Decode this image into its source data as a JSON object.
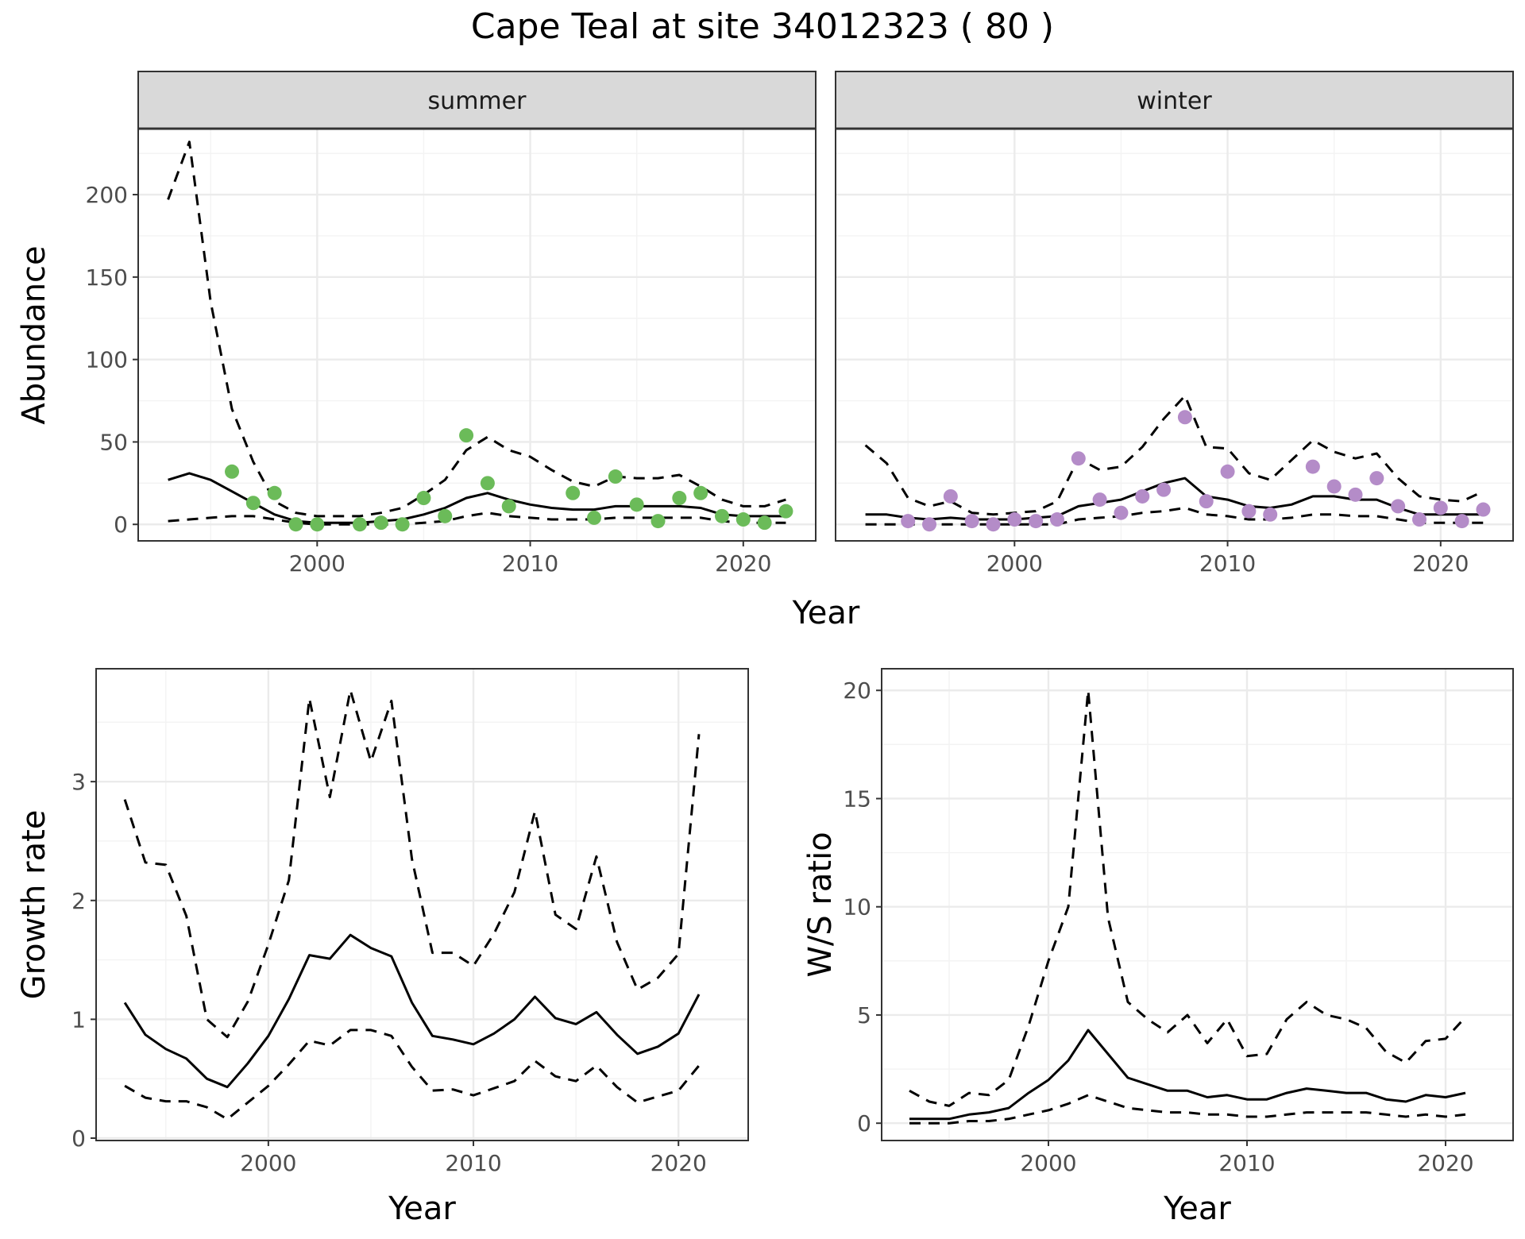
{
  "title": "Cape Teal at site 34012323 ( 80 )",
  "colors": {
    "summer_points": "#6bbb59",
    "winter_points": "#b48cc8"
  },
  "chart_data": [
    {
      "id": "abundance",
      "type": "line",
      "facets": [
        "summer",
        "winter"
      ],
      "xlabel": "Year",
      "ylabel": "Abundance",
      "xlim": [
        1991.6,
        2023.4
      ],
      "ylim": [
        -10,
        240
      ],
      "xticks": [
        2000,
        2010,
        2020
      ],
      "yticks": [
        0,
        50,
        100,
        150,
        200
      ],
      "panels": [
        {
          "facet": "summer",
          "x": [
            1993,
            1994,
            1995,
            1996,
            1997,
            1998,
            1999,
            2000,
            2001,
            2002,
            2003,
            2004,
            2005,
            2006,
            2007,
            2008,
            2009,
            2010,
            2011,
            2012,
            2013,
            2014,
            2015,
            2016,
            2017,
            2018,
            2019,
            2020,
            2021,
            2022
          ],
          "mean": [
            27,
            31,
            27,
            20,
            13,
            6,
            2,
            1,
            1,
            1,
            2,
            3,
            6,
            10,
            16,
            19,
            15,
            12,
            10,
            9,
            9,
            11,
            11,
            11,
            11,
            10,
            6,
            5,
            5,
            5
          ],
          "upper": [
            197,
            232,
            135,
            70,
            38,
            14,
            7,
            5,
            5,
            5,
            7,
            10,
            18,
            27,
            45,
            53,
            45,
            41,
            33,
            26,
            23,
            29,
            28,
            28,
            30,
            23,
            15,
            11,
            11,
            15
          ],
          "lower": [
            2,
            3,
            4,
            5,
            5,
            3,
            1,
            0,
            0,
            0,
            0,
            0,
            1,
            2,
            5,
            7,
            5,
            4,
            3,
            3,
            3,
            4,
            4,
            4,
            4,
            4,
            2,
            1,
            1,
            1
          ],
          "points": {
            "x": [
              1996,
              1997,
              1998,
              1999,
              2000,
              2002,
              2003,
              2004,
              2005,
              2006,
              2007,
              2008,
              2009,
              2012,
              2013,
              2014,
              2015,
              2016,
              2017,
              2018,
              2019,
              2020,
              2021,
              2022
            ],
            "y": [
              32,
              13,
              19,
              0,
              0,
              0,
              1,
              0,
              16,
              5,
              54,
              25,
              11,
              19,
              4,
              29,
              12,
              2,
              16,
              19,
              5,
              3,
              1,
              8
            ]
          }
        },
        {
          "facet": "winter",
          "x": [
            1993,
            1994,
            1995,
            1996,
            1997,
            1998,
            1999,
            2000,
            2001,
            2002,
            2003,
            2004,
            2005,
            2006,
            2007,
            2008,
            2009,
            2010,
            2011,
            2012,
            2013,
            2014,
            2015,
            2016,
            2017,
            2018,
            2019,
            2020,
            2021,
            2022
          ],
          "mean": [
            6,
            6,
            4,
            3,
            4,
            3,
            3,
            3,
            4,
            5,
            11,
            13,
            15,
            20,
            25,
            28,
            17,
            15,
            11,
            10,
            12,
            17,
            17,
            15,
            15,
            10,
            6,
            6,
            6,
            6
          ],
          "upper": [
            48,
            37,
            16,
            11,
            14,
            7,
            6,
            7,
            8,
            14,
            40,
            33,
            35,
            47,
            64,
            78,
            47,
            46,
            31,
            27,
            39,
            51,
            44,
            40,
            43,
            28,
            17,
            15,
            14,
            20
          ],
          "lower": [
            0,
            0,
            0,
            0,
            0,
            0,
            0,
            0,
            0,
            0,
            3,
            4,
            5,
            7,
            8,
            10,
            6,
            5,
            3,
            3,
            4,
            6,
            6,
            5,
            5,
            3,
            1,
            1,
            1,
            1
          ],
          "points": {
            "x": [
              1995,
              1996,
              1997,
              1998,
              1999,
              2000,
              2001,
              2002,
              2003,
              2004,
              2005,
              2006,
              2007,
              2008,
              2009,
              2010,
              2011,
              2012,
              2014,
              2015,
              2016,
              2017,
              2018,
              2019,
              2020,
              2021,
              2022
            ],
            "y": [
              2,
              0,
              17,
              2,
              0,
              3,
              2,
              3,
              40,
              15,
              7,
              17,
              21,
              65,
              14,
              32,
              8,
              6,
              35,
              23,
              18,
              28,
              11,
              3,
              10,
              2,
              9
            ]
          }
        }
      ]
    },
    {
      "id": "growth",
      "type": "line",
      "xlabel": "Year",
      "ylabel": "Growth rate",
      "xlim": [
        1991.6,
        2023.4
      ],
      "ylim": [
        -0.02,
        3.95
      ],
      "xticks": [
        2000,
        2010,
        2020
      ],
      "yticks": [
        0,
        1,
        2,
        3
      ],
      "x": [
        1993,
        1994,
        1995,
        1996,
        1997,
        1998,
        1999,
        2000,
        2001,
        2002,
        2003,
        2004,
        2005,
        2006,
        2007,
        2008,
        2009,
        2010,
        2011,
        2012,
        2013,
        2014,
        2015,
        2016,
        2017,
        2018,
        2019,
        2020,
        2021
      ],
      "mean": [
        1.14,
        0.87,
        0.75,
        0.67,
        0.5,
        0.43,
        0.63,
        0.86,
        1.17,
        1.54,
        1.51,
        1.71,
        1.6,
        1.53,
        1.14,
        0.86,
        0.83,
        0.79,
        0.88,
        1.0,
        1.19,
        1.01,
        0.96,
        1.06,
        0.87,
        0.71,
        0.77,
        0.88,
        1.21
      ],
      "upper": [
        2.85,
        2.32,
        2.3,
        1.87,
        1.0,
        0.85,
        1.15,
        1.63,
        2.17,
        3.7,
        2.87,
        3.77,
        3.17,
        3.68,
        2.35,
        1.56,
        1.56,
        1.45,
        1.72,
        2.07,
        2.75,
        1.88,
        1.76,
        2.37,
        1.65,
        1.25,
        1.35,
        1.55,
        3.4
      ],
      "lower": [
        0.44,
        0.34,
        0.31,
        0.31,
        0.26,
        0.16,
        0.3,
        0.44,
        0.62,
        0.82,
        0.78,
        0.91,
        0.91,
        0.86,
        0.6,
        0.4,
        0.41,
        0.36,
        0.42,
        0.48,
        0.65,
        0.52,
        0.48,
        0.61,
        0.43,
        0.3,
        0.35,
        0.4,
        0.61
      ]
    },
    {
      "id": "ws_ratio",
      "type": "line",
      "xlabel": "Year",
      "ylabel": "W/S ratio",
      "xlim": [
        1991.6,
        2023.4
      ],
      "ylim": [
        -0.8,
        21.0
      ],
      "xticks": [
        2000,
        2010,
        2020
      ],
      "yticks": [
        0,
        5,
        10,
        15,
        20
      ],
      "x": [
        1993,
        1994,
        1995,
        1996,
        1997,
        1998,
        1999,
        2000,
        2001,
        2002,
        2003,
        2004,
        2005,
        2006,
        2007,
        2008,
        2009,
        2010,
        2011,
        2012,
        2013,
        2014,
        2015,
        2016,
        2017,
        2018,
        2019,
        2020,
        2021
      ],
      "mean": [
        0.2,
        0.2,
        0.2,
        0.4,
        0.5,
        0.7,
        1.4,
        2.0,
        2.9,
        4.3,
        3.2,
        2.1,
        1.8,
        1.5,
        1.5,
        1.2,
        1.3,
        1.1,
        1.1,
        1.4,
        1.6,
        1.5,
        1.4,
        1.4,
        1.1,
        1.0,
        1.3,
        1.2,
        1.4
      ],
      "upper": [
        1.5,
        1.0,
        0.8,
        1.4,
        1.3,
        2.0,
        4.5,
        7.5,
        10.0,
        20.0,
        9.5,
        5.6,
        4.8,
        4.2,
        5.0,
        3.7,
        4.8,
        3.1,
        3.2,
        4.8,
        5.6,
        5.0,
        4.8,
        4.4,
        3.3,
        2.8,
        3.8,
        3.9,
        4.9
      ],
      "lower": [
        0.0,
        0.0,
        0.0,
        0.1,
        0.1,
        0.2,
        0.4,
        0.6,
        0.9,
        1.3,
        1.0,
        0.7,
        0.6,
        0.5,
        0.5,
        0.4,
        0.4,
        0.3,
        0.3,
        0.4,
        0.5,
        0.5,
        0.5,
        0.5,
        0.4,
        0.3,
        0.4,
        0.3,
        0.4
      ]
    }
  ]
}
